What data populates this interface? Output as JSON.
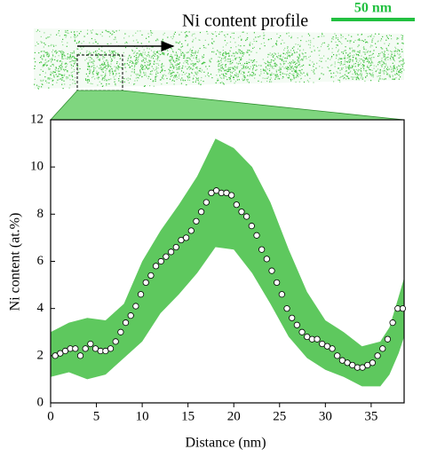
{
  "header": {
    "title": "Ni content profile",
    "scale_bar": "50 nm"
  },
  "chart_data": {
    "type": "scatter",
    "xlabel": "Distance (nm)",
    "ylabel": "Ni content (at.%)",
    "xlim": [
      0,
      38.6
    ],
    "ylim": [
      0,
      12
    ],
    "xticks": [
      0,
      5,
      10,
      15,
      20,
      25,
      30,
      35
    ],
    "yticks": [
      0,
      2,
      4,
      6,
      8,
      10,
      12
    ],
    "series": [
      {
        "color": "#ffffff",
        "x": [
          0.5,
          1.05,
          1.6,
          2.15,
          2.7,
          3.25,
          3.8,
          4.35,
          4.9,
          5.45,
          6.0,
          6.55,
          7.1,
          7.65,
          8.2,
          8.75,
          9.3,
          9.85,
          10.4,
          10.95,
          11.5,
          12.05,
          12.6,
          13.15,
          13.7,
          14.25,
          14.8,
          15.35,
          15.9,
          16.45,
          17.0,
          17.55,
          18.1,
          18.65,
          19.2,
          19.75,
          20.3,
          20.85,
          21.4,
          21.95,
          22.5,
          23.05,
          23.6,
          24.15,
          24.7,
          25.25,
          25.8,
          26.35,
          26.9,
          27.45,
          28.0,
          28.55,
          29.1,
          29.65,
          30.2,
          30.75,
          31.3,
          31.85,
          32.4,
          32.95,
          33.5,
          34.05,
          34.6,
          35.15,
          35.7,
          36.25,
          36.8,
          37.35,
          37.9,
          38.45
        ],
        "values": [
          2.0,
          2.1,
          2.2,
          2.3,
          2.3,
          2.0,
          2.3,
          2.5,
          2.3,
          2.2,
          2.2,
          2.3,
          2.6,
          3.0,
          3.4,
          3.7,
          4.1,
          4.6,
          5.1,
          5.4,
          5.8,
          6.0,
          6.2,
          6.4,
          6.6,
          6.9,
          7.0,
          7.3,
          7.7,
          8.1,
          8.5,
          8.9,
          9.0,
          8.9,
          8.9,
          8.8,
          8.4,
          8.1,
          7.9,
          7.5,
          7.1,
          6.5,
          6.1,
          5.6,
          5.1,
          4.6,
          4.0,
          3.6,
          3.3,
          3.0,
          2.8,
          2.7,
          2.7,
          2.5,
          2.4,
          2.3,
          2.0,
          1.8,
          1.7,
          1.6,
          1.5,
          1.5,
          1.6,
          1.7,
          2.0,
          2.3,
          2.7,
          3.4,
          4.0,
          4.0
        ]
      }
    ],
    "band": {
      "color": "#5ec85e",
      "x": [
        0,
        2,
        4,
        6,
        8,
        10,
        12,
        14,
        16,
        18,
        20,
        22,
        24,
        26,
        28,
        30,
        32,
        34,
        36,
        37,
        38,
        38.6
      ],
      "upper": [
        3.0,
        3.4,
        3.6,
        3.5,
        4.2,
        6.0,
        7.3,
        8.4,
        9.6,
        11.2,
        10.8,
        10.0,
        8.5,
        6.5,
        4.7,
        3.5,
        3.0,
        2.4,
        2.6,
        3.2,
        4.5,
        5.3
      ],
      "lower": [
        1.1,
        1.3,
        1.0,
        1.2,
        1.9,
        2.6,
        3.8,
        4.6,
        5.5,
        6.6,
        6.5,
        5.5,
        4.2,
        2.8,
        1.9,
        1.4,
        1.1,
        0.7,
        0.7,
        1.2,
        2.1,
        2.8
      ]
    }
  }
}
